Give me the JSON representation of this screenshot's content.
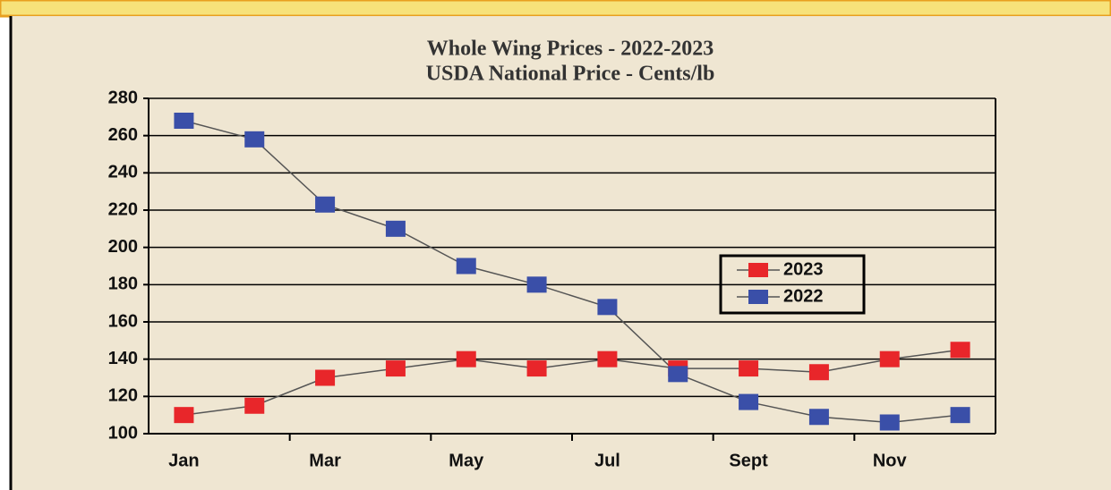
{
  "chart_data": {
    "type": "line",
    "title": "Whole Wing Prices - 2022-2023",
    "subtitle": "USDA National Price - Cents/lb",
    "categories": [
      "Jan",
      null,
      "Mar",
      null,
      "May",
      null,
      "Jul",
      null,
      "Sept",
      null,
      "Nov",
      null
    ],
    "series": [
      {
        "name": "2023",
        "color": "#e8262a",
        "values": [
          110,
          115,
          130,
          135,
          140,
          135,
          140,
          135,
          135,
          133,
          140,
          145
        ]
      },
      {
        "name": "2022",
        "color": "#3a4fa8",
        "values": [
          268,
          258,
          223,
          210,
          190,
          180,
          168,
          132,
          117,
          109,
          106,
          110
        ]
      }
    ],
    "ylim": [
      100,
      280
    ],
    "yticks": [
      100,
      120,
      140,
      160,
      180,
      200,
      220,
      240,
      260,
      280
    ],
    "grid": true,
    "legend": "right"
  }
}
